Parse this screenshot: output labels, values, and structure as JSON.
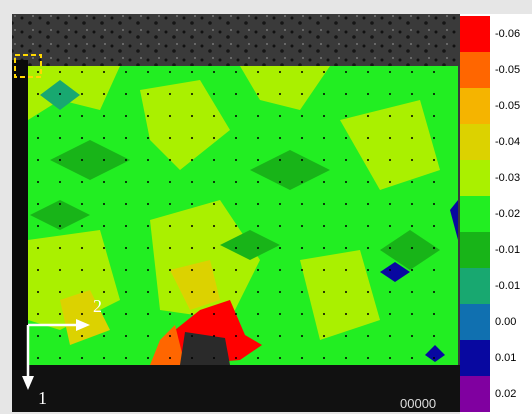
{
  "image": {
    "axis_label_1": "1",
    "axis_label_2": "2",
    "frame_counter": "00000"
  },
  "colorbar": {
    "entries": [
      {
        "label": "-0.06",
        "color": "#ff0000"
      },
      {
        "label": "-0.05",
        "color": "#ff6600"
      },
      {
        "label": "-0.05",
        "color": "#f5b400"
      },
      {
        "label": "-0.04",
        "color": "#dcd200"
      },
      {
        "label": "-0.03",
        "color": "#aaf000"
      },
      {
        "label": "-0.02",
        "color": "#22ee22"
      },
      {
        "label": "-0.01",
        "color": "#18b418"
      },
      {
        "label": "-0.01",
        "color": "#18a870"
      },
      {
        "label": "0.00",
        "color": "#1070b0"
      },
      {
        "label": "0.01",
        "color": "#0808a0"
      },
      {
        "label": "0.02",
        "color": "#8000a0"
      }
    ]
  }
}
